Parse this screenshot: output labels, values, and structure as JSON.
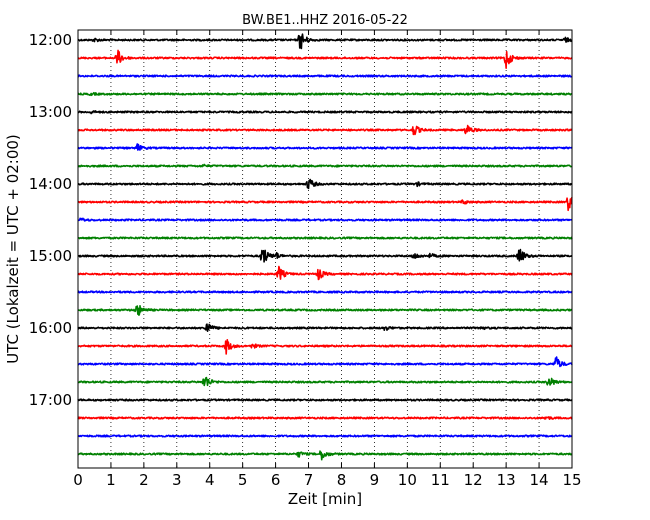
{
  "chart_data": {
    "type": "line",
    "title": "BW.BE1..HHZ 2016-05-22",
    "xlabel": "Zeit  [min]",
    "ylabel": "UTC (Lokalzeit = UTC + 02:00)",
    "xlim": [
      0,
      15
    ],
    "x_ticks": [
      "0",
      "1",
      "2",
      "3",
      "4",
      "5",
      "6",
      "7",
      "8",
      "9",
      "10",
      "11",
      "12",
      "13",
      "14",
      "15"
    ],
    "y_tick_labels": [
      "12:00",
      "13:00",
      "14:00",
      "15:00",
      "16:00",
      "17:00"
    ],
    "grid": "vertical dotted",
    "colors": [
      "#000000",
      "#ff0000",
      "#0000ff",
      "#008000"
    ],
    "traces": [
      {
        "label": "12:00",
        "color": "#000000",
        "events": [
          [
            6.75,
            1.0
          ],
          [
            0.5,
            0.15
          ],
          [
            14.8,
            0.2
          ]
        ]
      },
      {
        "label": "12:15",
        "color": "#ff0000",
        "events": [
          [
            1.2,
            0.75
          ],
          [
            13.0,
            1.0
          ]
        ]
      },
      {
        "label": "12:30",
        "color": "#0000ff",
        "events": []
      },
      {
        "label": "12:45",
        "color": "#008000",
        "events": [
          [
            0.4,
            0.1
          ]
        ]
      },
      {
        "label": "13:00",
        "color": "#000000",
        "events": [
          [
            0.4,
            0.1
          ]
        ]
      },
      {
        "label": "13:15",
        "color": "#ff0000",
        "events": [
          [
            10.2,
            0.55
          ],
          [
            11.8,
            0.55
          ]
        ]
      },
      {
        "label": "13:30",
        "color": "#0000ff",
        "events": [
          [
            1.8,
            0.35
          ]
        ]
      },
      {
        "label": "13:45",
        "color": "#008000",
        "events": [
          [
            3.8,
            0.1
          ]
        ]
      },
      {
        "label": "14:00",
        "color": "#000000",
        "events": [
          [
            7.0,
            0.6
          ],
          [
            10.3,
            0.15
          ]
        ]
      },
      {
        "label": "14:15",
        "color": "#ff0000",
        "events": [
          [
            11.7,
            0.2
          ],
          [
            14.9,
            0.9
          ]
        ]
      },
      {
        "label": "14:30",
        "color": "#0000ff",
        "events": [
          [
            0.1,
            0.15
          ]
        ]
      },
      {
        "label": "14:45",
        "color": "#008000",
        "events": []
      },
      {
        "label": "15:00",
        "color": "#000000",
        "events": [
          [
            5.6,
            1.0
          ],
          [
            6.0,
            0.3
          ],
          [
            10.2,
            0.3
          ],
          [
            10.7,
            0.2
          ],
          [
            13.4,
            0.85
          ]
        ]
      },
      {
        "label": "15:15",
        "color": "#ff0000",
        "events": [
          [
            6.1,
            0.7
          ],
          [
            7.3,
            0.55
          ]
        ]
      },
      {
        "label": "15:30",
        "color": "#0000ff",
        "events": []
      },
      {
        "label": "15:45",
        "color": "#008000",
        "events": [
          [
            1.8,
            0.65
          ]
        ]
      },
      {
        "label": "16:00",
        "color": "#000000",
        "events": [
          [
            3.9,
            0.6
          ],
          [
            9.3,
            0.25
          ],
          [
            12.2,
            0.15
          ]
        ]
      },
      {
        "label": "16:15",
        "color": "#ff0000",
        "events": [
          [
            4.5,
            0.7
          ],
          [
            5.3,
            0.2
          ]
        ]
      },
      {
        "label": "16:30",
        "color": "#0000ff",
        "events": [
          [
            14.5,
            0.75
          ]
        ]
      },
      {
        "label": "16:45",
        "color": "#008000",
        "events": [
          [
            3.85,
            0.75
          ],
          [
            14.3,
            0.55
          ]
        ]
      },
      {
        "label": "17:00",
        "color": "#000000",
        "events": []
      },
      {
        "label": "17:15",
        "color": "#ff0000",
        "events": [
          [
            14.2,
            0.15
          ]
        ]
      },
      {
        "label": "17:30",
        "color": "#0000ff",
        "events": []
      },
      {
        "label": "17:45",
        "color": "#008000",
        "events": [
          [
            6.7,
            0.25
          ],
          [
            7.4,
            0.55
          ]
        ]
      }
    ]
  }
}
